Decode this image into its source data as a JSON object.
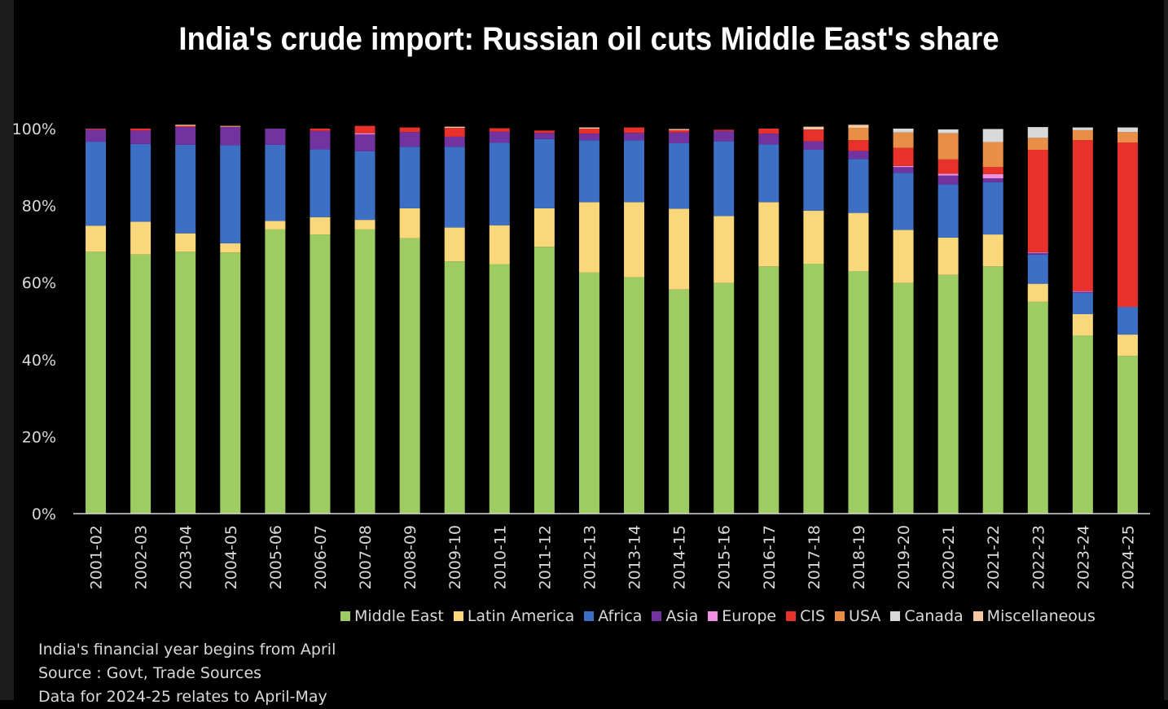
{
  "title": "India's crude import: Russian oil cuts Middle East's share",
  "notes": [
    "India's financial year begins from April",
    "Source : Govt, Trade Sources",
    "Data for 2024-25 relates to April-May"
  ],
  "chart_data": {
    "type": "bar",
    "stacked": true,
    "categories": [
      "2001-02",
      "2002-03",
      "2003-04",
      "2004-05",
      "2005-06",
      "2006-07",
      "2007-08",
      "2008-09",
      "2009-10",
      "2010-11",
      "2011-12",
      "2012-13",
      "2013-14",
      "2014-15",
      "2015-16",
      "2016-17",
      "2017-18",
      "2018-19",
      "2019-20",
      "2020-21",
      "2021-22",
      "2022-23",
      "2023-24",
      "2024-25"
    ],
    "y_ticks": [
      "0%",
      "20%",
      "40%",
      "60%",
      "80%",
      "100%"
    ],
    "ylim": [
      0,
      100
    ],
    "legend_position": "bottom-right",
    "series": [
      {
        "name": "Middle East",
        "color": "#9dcc63",
        "values": [
          68,
          67.3,
          68,
          67.8,
          73.8,
          72.5,
          73.8,
          71.5,
          65.5,
          64.8,
          69.3,
          62.6,
          61.4,
          58.2,
          59.9,
          64.2,
          64.9,
          63,
          59.9,
          62,
          64.2,
          55,
          46.3,
          41
        ]
      },
      {
        "name": "Latin America",
        "color": "#f9d77a",
        "values": [
          6.8,
          8.5,
          4.8,
          2.4,
          2.2,
          4.5,
          2.5,
          7.8,
          8.8,
          10.1,
          10,
          18.3,
          19.5,
          21,
          17.4,
          16.7,
          13.8,
          15.1,
          13.8,
          9.7,
          8.3,
          4.7,
          5.5,
          5.5
        ]
      },
      {
        "name": "Africa",
        "color": "#3d70c4",
        "values": [
          21.8,
          20.2,
          23,
          25.5,
          19.8,
          17.6,
          17.8,
          16,
          21,
          21.4,
          18,
          16.1,
          16.1,
          17,
          19.4,
          15,
          15.8,
          14,
          14.8,
          13.8,
          13.6,
          7.6,
          5.5,
          7.2
        ]
      },
      {
        "name": "Asia",
        "color": "#7233a0",
        "values": [
          3.2,
          3.5,
          4.6,
          4.7,
          4.2,
          4.8,
          4.4,
          3.8,
          2.6,
          2.9,
          1.6,
          1.7,
          1.9,
          2.8,
          2.7,
          2.8,
          2.2,
          2.1,
          1.5,
          2.3,
          1,
          0.4,
          0.3,
          0
        ]
      },
      {
        "name": "Europe",
        "color": "#f090e0",
        "values": [
          0,
          0,
          0,
          0,
          0,
          0,
          0.3,
          0,
          0,
          0,
          0,
          0,
          0,
          0,
          0,
          0,
          0,
          0,
          0.3,
          0.5,
          1.1,
          0.2,
          0.2,
          0
        ]
      },
      {
        "name": "CIS",
        "color": "#e8312a",
        "values": [
          0.2,
          0.5,
          0.3,
          0.1,
          0,
          0.6,
          1.9,
          1.2,
          2.3,
          0.9,
          0.6,
          1.3,
          1.4,
          0.6,
          0.3,
          1.3,
          3.1,
          2.8,
          4.7,
          3.7,
          1.8,
          26.6,
          39.2,
          42.7
        ]
      },
      {
        "name": "USA",
        "color": "#e98e46",
        "values": [
          0,
          0,
          0,
          0,
          0,
          0,
          0,
          0,
          0,
          0,
          0,
          0,
          0,
          0,
          0,
          0,
          0,
          3.2,
          4,
          6.8,
          6.5,
          3.1,
          2.6,
          2.7
        ]
      },
      {
        "name": "Canada",
        "color": "#d9d9d9",
        "values": [
          0,
          0,
          0,
          0,
          0,
          0,
          0,
          0,
          0,
          0,
          0,
          0,
          0,
          0,
          0,
          0,
          0.2,
          0,
          1,
          1,
          3.4,
          2.8,
          0.7,
          1.2
        ]
      },
      {
        "name": "Miscellaneous",
        "color": "#f7c9a0",
        "values": [
          0,
          0,
          0.3,
          0.2,
          0,
          0,
          0,
          0,
          0.3,
          0,
          0,
          0.3,
          0,
          0.3,
          0,
          0,
          0.5,
          0.8,
          0,
          0,
          0,
          0,
          0,
          0
        ]
      }
    ]
  }
}
